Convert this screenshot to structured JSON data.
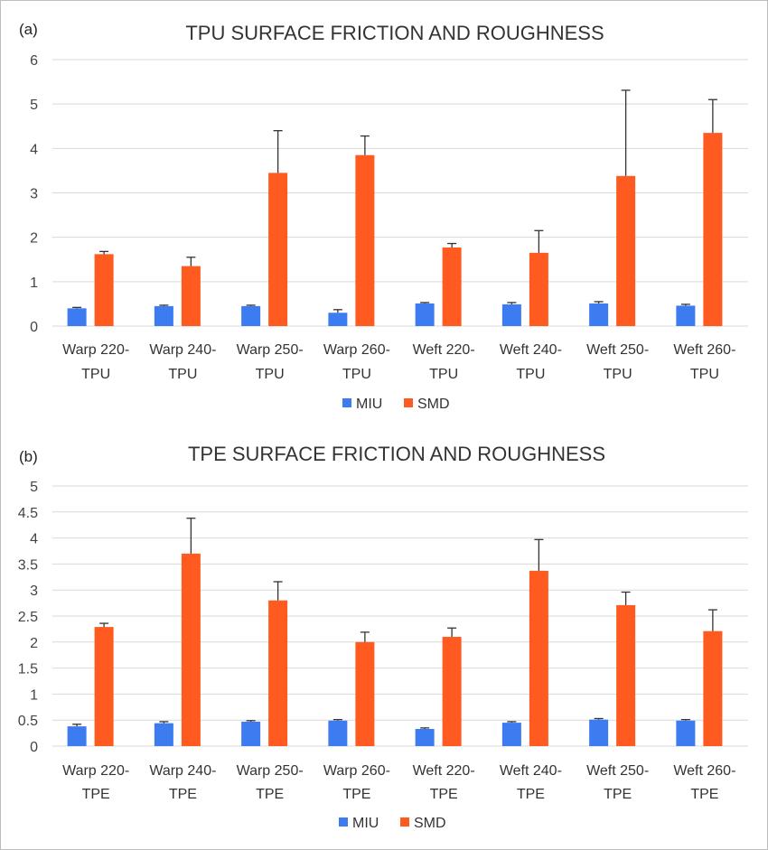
{
  "colors": {
    "miu": "#3d7cf0",
    "smd": "#ff5a1f",
    "grid": "#d9d9d9",
    "error_bar": "#333333"
  },
  "chart_data": [
    {
      "panel_label": "(a)",
      "type": "bar",
      "title": "TPU SURFACE FRICTION AND ROUGHNESS",
      "categories": [
        [
          "Warp 220-",
          "TPU"
        ],
        [
          "Warp 240-",
          "TPU"
        ],
        [
          "Warp 250-",
          "TPU"
        ],
        [
          "Warp 260-",
          "TPU"
        ],
        [
          "Weft 220-",
          "TPU"
        ],
        [
          "Weft 240-",
          "TPU"
        ],
        [
          "Weft 250-",
          "TPU"
        ],
        [
          "Weft 260-",
          "TPU"
        ]
      ],
      "series": [
        {
          "name": "MIU",
          "values": [
            0.4,
            0.45,
            0.45,
            0.3,
            0.51,
            0.49,
            0.51,
            0.46
          ],
          "errors": [
            0.02,
            0.02,
            0.02,
            0.07,
            0.02,
            0.04,
            0.04,
            0.03
          ]
        },
        {
          "name": "SMD",
          "values": [
            1.62,
            1.35,
            3.45,
            3.85,
            1.77,
            1.65,
            3.38,
            4.35
          ],
          "errors": [
            0.06,
            0.2,
            0.95,
            0.43,
            0.09,
            0.5,
            1.93,
            0.75
          ]
        }
      ],
      "ylim": [
        0,
        6
      ],
      "yticks": [
        "0",
        "1",
        "2",
        "3",
        "4",
        "5",
        "6"
      ],
      "grid": true,
      "legend": "bottom"
    },
    {
      "panel_label": "(b)",
      "type": "bar",
      "title": "TPE SURFACE FRICTION AND ROUGHNESS",
      "categories": [
        [
          "Warp 220-",
          "TPE"
        ],
        [
          "Warp 240-",
          "TPE"
        ],
        [
          "Warp 250-",
          "TPE"
        ],
        [
          "Warp 260-",
          "TPE"
        ],
        [
          "Weft 220-",
          "TPE"
        ],
        [
          "Weft 240-",
          "TPE"
        ],
        [
          "Weft 250-",
          "TPE"
        ],
        [
          "Weft 260-",
          "TPE"
        ]
      ],
      "series": [
        {
          "name": "MIU",
          "values": [
            0.38,
            0.44,
            0.47,
            0.49,
            0.33,
            0.45,
            0.51,
            0.49
          ],
          "errors": [
            0.04,
            0.03,
            0.02,
            0.02,
            0.02,
            0.02,
            0.02,
            0.02
          ]
        },
        {
          "name": "SMD",
          "values": [
            2.29,
            3.7,
            2.8,
            2.0,
            2.1,
            3.37,
            2.71,
            2.21
          ],
          "errors": [
            0.07,
            0.68,
            0.36,
            0.19,
            0.17,
            0.6,
            0.25,
            0.41
          ]
        }
      ],
      "ylim": [
        0,
        5
      ],
      "yticks": [
        "0",
        "0.5",
        "1",
        "1.5",
        "2",
        "2.5",
        "3",
        "3.5",
        "4",
        "4.5",
        "5"
      ],
      "grid": true,
      "legend": "bottom"
    }
  ]
}
